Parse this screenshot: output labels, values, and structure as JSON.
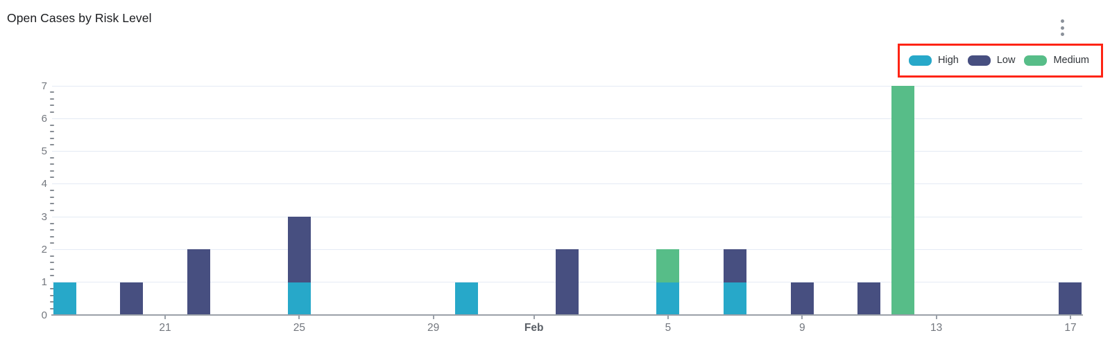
{
  "header": {
    "title": "Open Cases by Risk Level",
    "menu_icon": "kebab-menu-icon"
  },
  "legend": {
    "highlight_color": "#fe2414",
    "position": "top-right",
    "items": [
      {
        "label": "High",
        "color": "#27a8c9"
      },
      {
        "label": "Low",
        "color": "#474f80"
      },
      {
        "label": "Medium",
        "color": "#57bd88"
      }
    ]
  },
  "chart_data": {
    "type": "bar",
    "stacked": true,
    "title": "Open Cases by Risk Level",
    "xlabel": "",
    "ylabel": "",
    "x_axis_type": "time-daily",
    "x_start": "Jan 18",
    "x_end": "Feb 17",
    "ylim": [
      0,
      7
    ],
    "y_ticks": [
      0,
      1,
      2,
      3,
      4,
      5,
      6,
      7
    ],
    "minor_ticks_per_unit": 4,
    "grid": true,
    "legend_position": "top-right",
    "series_order_bottom_to_top": [
      "High",
      "Low",
      "Medium"
    ],
    "series_colors": {
      "High": "#27a8c9",
      "Low": "#474f80",
      "Medium": "#57bd88"
    },
    "x_ticks": [
      {
        "label": "21",
        "day_index": 3,
        "bold": false
      },
      {
        "label": "25",
        "day_index": 7,
        "bold": false
      },
      {
        "label": "29",
        "day_index": 11,
        "bold": false
      },
      {
        "label": "Feb",
        "day_index": 14,
        "bold": true
      },
      {
        "label": "5",
        "day_index": 18,
        "bold": false
      },
      {
        "label": "9",
        "day_index": 22,
        "bold": false
      },
      {
        "label": "13",
        "day_index": 26,
        "bold": false
      },
      {
        "label": "17",
        "day_index": 30,
        "bold": false
      }
    ],
    "bars": [
      {
        "date": "Jan 18",
        "day_index": 0,
        "High": 1,
        "Low": 0,
        "Medium": 0,
        "total": 1
      },
      {
        "date": "Jan 20",
        "day_index": 2,
        "High": 0,
        "Low": 1,
        "Medium": 0,
        "total": 1
      },
      {
        "date": "Jan 22",
        "day_index": 4,
        "High": 0,
        "Low": 2,
        "Medium": 0,
        "total": 2
      },
      {
        "date": "Jan 25",
        "day_index": 7,
        "High": 1,
        "Low": 2,
        "Medium": 0,
        "total": 3
      },
      {
        "date": "Jan 30",
        "day_index": 12,
        "High": 1,
        "Low": 0,
        "Medium": 0,
        "total": 1
      },
      {
        "date": "Feb 2",
        "day_index": 15,
        "High": 0,
        "Low": 2,
        "Medium": 0,
        "total": 2
      },
      {
        "date": "Feb 5",
        "day_index": 18,
        "High": 1,
        "Low": 0,
        "Medium": 1,
        "total": 2
      },
      {
        "date": "Feb 7",
        "day_index": 20,
        "High": 1,
        "Low": 1,
        "Medium": 0,
        "total": 2
      },
      {
        "date": "Feb 9",
        "day_index": 22,
        "High": 0,
        "Low": 1,
        "Medium": 0,
        "total": 1
      },
      {
        "date": "Feb 11",
        "day_index": 24,
        "High": 0,
        "Low": 1,
        "Medium": 0,
        "total": 1
      },
      {
        "date": "Feb 12",
        "day_index": 25,
        "High": 0,
        "Low": 0,
        "Medium": 7,
        "total": 7
      },
      {
        "date": "Feb 17",
        "day_index": 30,
        "High": 0,
        "Low": 1,
        "Medium": 0,
        "total": 1
      }
    ]
  }
}
